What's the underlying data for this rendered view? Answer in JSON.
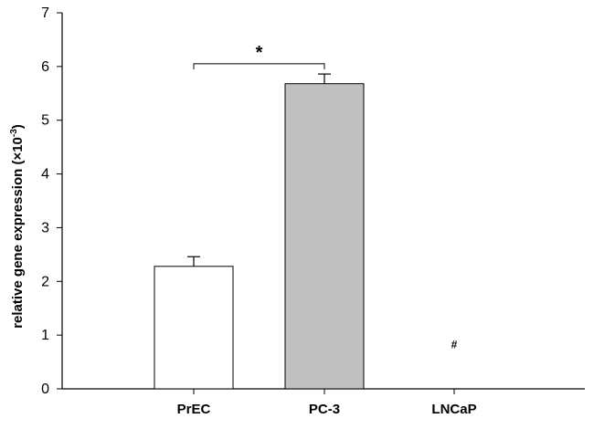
{
  "chart_data": {
    "type": "bar",
    "categories": [
      "PrEC",
      "PC-3",
      "LNCaP"
    ],
    "values": [
      2.28,
      5.68,
      0
    ],
    "errors": [
      0.18,
      0.18,
      0
    ],
    "bar_colors": [
      "#ffffff",
      "#c0c0c0",
      "#ffffff"
    ],
    "ylabel_main": "relative gene expression (×10",
    "ylabel_sup": "-3",
    "ylabel_close": ")",
    "xlabel": "",
    "ylim": [
      0,
      7
    ],
    "yticks": [
      "0",
      "1",
      "2",
      "3",
      "4",
      "5",
      "6",
      "7"
    ],
    "grid": false,
    "legend": "none",
    "annotations": {
      "significance": {
        "label": "*",
        "between": [
          0,
          1
        ],
        "level": 6.05
      },
      "not_detected": {
        "label": "#",
        "category": 2,
        "level": 0.82
      }
    }
  }
}
